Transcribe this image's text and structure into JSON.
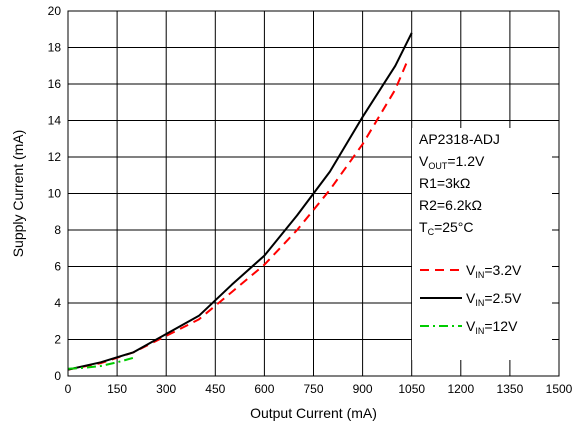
{
  "chart_data": {
    "type": "line",
    "xlabel": "Output Current (mA)",
    "ylabel": "Supply Current (mA)",
    "xlim": [
      0,
      1500
    ],
    "ylim": [
      0,
      20
    ],
    "xticks": [
      0,
      150,
      300,
      450,
      600,
      750,
      900,
      1050,
      1200,
      1350,
      1500
    ],
    "yticks": [
      0,
      2,
      4,
      6,
      8,
      10,
      12,
      14,
      16,
      18,
      20
    ],
    "grid": true,
    "annotations": [
      {
        "main": "AP2318-ADJ"
      },
      {
        "main": "V",
        "sub": "OUT",
        "rest": "=1.2V"
      },
      {
        "main": "R1=3kΩ"
      },
      {
        "main": "R2=6.2kΩ"
      },
      {
        "main": "T",
        "sub": "C",
        "rest": "=25°C"
      }
    ],
    "legend_position": "right",
    "series": [
      {
        "name": "V",
        "name_sub": "IN",
        "name_rest": "=3.2V",
        "color": "#ff0000",
        "dash": "9,6",
        "x": [
          0,
          100,
          200,
          300,
          400,
          500,
          600,
          700,
          800,
          900,
          1000,
          1040
        ],
        "y": [
          0.35,
          0.7,
          1.3,
          2.2,
          3.1,
          4.6,
          6.1,
          8.0,
          10.2,
          12.7,
          15.7,
          17.4
        ]
      },
      {
        "name": "V",
        "name_sub": "IN",
        "name_rest": "=2.5V",
        "color": "#000000",
        "dash": "",
        "x": [
          0,
          100,
          200,
          300,
          400,
          500,
          600,
          700,
          800,
          900,
          1000,
          1050
        ],
        "y": [
          0.35,
          0.75,
          1.3,
          2.3,
          3.3,
          5.0,
          6.6,
          8.8,
          11.2,
          14.2,
          17.0,
          18.8
        ]
      },
      {
        "name": "V",
        "name_sub": "IN",
        "name_rest": "=12V",
        "color": "#00cc00",
        "dash": "9,4,2,4",
        "x": [
          0,
          50,
          100,
          150,
          200
        ],
        "y": [
          0.4,
          0.45,
          0.55,
          0.75,
          1.0
        ]
      }
    ]
  }
}
